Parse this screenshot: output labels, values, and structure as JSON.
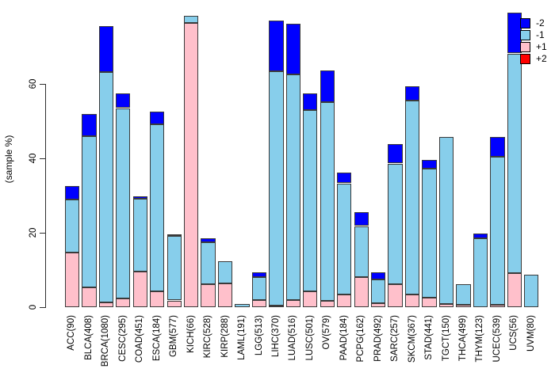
{
  "legend": {
    "items": [
      {
        "label": "-2",
        "color": "#0000FF"
      },
      {
        "label": "-1",
        "color": "#87CEEB"
      },
      {
        "label": "+1",
        "color": "#FFC0CB"
      },
      {
        "label": "+2",
        "color": "#FF0000"
      }
    ]
  },
  "chart_data": {
    "type": "bar",
    "stacked": true,
    "title": "",
    "xlabel": "",
    "ylabel": "(sample %)",
    "ylim": [
      0,
      79.6
    ],
    "yticks": [
      0,
      20,
      40,
      60
    ],
    "grid": false,
    "legend_position": "top-right",
    "categories": [
      "ACC(90)",
      "BLCA(408)",
      "BRCA(1080)",
      "CESC(295)",
      "COAD(451)",
      "ESCA(184)",
      "GBM(577)",
      "KICH(66)",
      "KIRC(528)",
      "KIRP(288)",
      "LAML(191)",
      "LGG(513)",
      "LIHC(370)",
      "LUAD(516)",
      "LUSC(501)",
      "OV(579)",
      "PAAD(184)",
      "PCPG(162)",
      "PRAD(492)",
      "SARC(257)",
      "SKCM(367)",
      "STAD(441)",
      "TGCT(150)",
      "THCA(499)",
      "THYM(123)",
      "UCEC(539)",
      "UCS(56)",
      "UVM(80)"
    ],
    "series": [
      {
        "name": "-2",
        "color": "#0000FF",
        "values": [
          3.5,
          6.0,
          12.3,
          3.9,
          0.7,
          3.4,
          0.5,
          0,
          1.0,
          0,
          0,
          1.3,
          13.7,
          13.7,
          4.5,
          8.4,
          2.9,
          3.7,
          2.0,
          5.2,
          3.8,
          2.3,
          0,
          0,
          1.3,
          5.3,
          11.0,
          0
        ]
      },
      {
        "name": "-1",
        "color": "#87CEEB",
        "values": [
          14.4,
          40.5,
          61.9,
          51.2,
          19.6,
          45.0,
          17.3,
          2.0,
          11.4,
          6.0,
          0.9,
          6.2,
          62.9,
          60.5,
          48.7,
          53.4,
          29.8,
          13.7,
          6.3,
          32.5,
          52.1,
          34.6,
          44.8,
          5.5,
          18.5,
          39.9,
          59.1,
          8.7
        ]
      },
      {
        "name": "+1",
        "color": "#FFC0CB",
        "values": [
          14.6,
          5.4,
          1.3,
          2.3,
          9.6,
          4.2,
          1.8,
          76.3,
          6.1,
          6.3,
          0,
          1.9,
          0.5,
          2.0,
          4.2,
          1.8,
          3.5,
          8.1,
          1.1,
          6.1,
          3.5,
          2.6,
          0.9,
          0.6,
          0,
          0.6,
          9.1,
          0
        ]
      },
      {
        "name": "+2",
        "color": "#FF0000",
        "values": [
          0,
          0,
          0,
          0,
          0,
          0,
          0,
          0,
          0,
          0,
          0,
          0,
          0,
          0,
          0,
          0,
          0,
          0,
          0,
          0,
          0,
          0,
          0,
          0,
          0,
          0,
          0,
          0
        ]
      }
    ],
    "stack_order_bottom_to_top": [
      "+1",
      "+2",
      "-1",
      "-2"
    ],
    "totals": [
      32.5,
      51.9,
      75.5,
      57.4,
      29.9,
      52.6,
      19.6,
      78.3,
      18.5,
      12.3,
      0.9,
      9.4,
      77.1,
      76.2,
      57.4,
      63.6,
      36.2,
      25.5,
      9.4,
      43.8,
      59.4,
      39.5,
      45.7,
      6.1,
      19.8,
      45.8,
      79.2,
      8.7
    ]
  }
}
